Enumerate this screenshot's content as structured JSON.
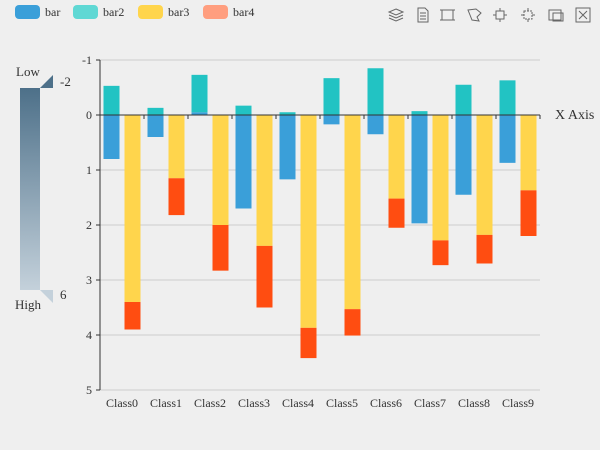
{
  "legend": [
    {
      "name": "bar",
      "color": "#3a9fd9"
    },
    {
      "name": "bar2",
      "color": "#5fd8d4"
    },
    {
      "name": "bar3",
      "color": "#ffd54c"
    },
    {
      "name": "bar4",
      "color": "#ff9e7f"
    }
  ],
  "toolbox": [
    {
      "name": "stack-icon"
    },
    {
      "name": "data-view-icon"
    },
    {
      "name": "rect-select-icon"
    },
    {
      "name": "lasso-select-icon"
    },
    {
      "name": "keep-selection-icon"
    },
    {
      "name": "clear-selection-icon"
    },
    {
      "name": "save-image-icon"
    },
    {
      "name": "restore-icon"
    }
  ],
  "visual_map": {
    "low_label": "Low",
    "high_label": "High",
    "min_label": "-2",
    "max_label": "6",
    "color_top": "#4d7089",
    "color_bottom": "#c4d1db"
  },
  "chart_data": {
    "type": "bar",
    "stacked": true,
    "y_inverted": true,
    "x_axis_at_zero": true,
    "xlabel": "X Axis",
    "ylabel": "",
    "ylim": [
      -1,
      5
    ],
    "y_ticks": [
      "-1",
      "0",
      "1",
      "2",
      "3",
      "4",
      "5"
    ],
    "categories": [
      "Class0",
      "Class1",
      "Class2",
      "Class3",
      "Class4",
      "Class5",
      "Class6",
      "Class7",
      "Class8",
      "Class9"
    ],
    "stacks": [
      {
        "stack_id": "one",
        "series": [
          {
            "name": "bar",
            "color": "#3a9fd9",
            "values": [
              0.8,
              0.4,
              -0.05,
              1.7,
              1.17,
              0.17,
              0.35,
              1.97,
              1.45,
              0.87
            ]
          },
          {
            "name": "bar2",
            "color": "#22c3c3",
            "values": [
              -0.53,
              -0.13,
              -0.68,
              -0.17,
              -0.05,
              -0.67,
              -0.85,
              -0.07,
              -0.55,
              -0.63
            ]
          }
        ]
      },
      {
        "stack_id": "two",
        "series": [
          {
            "name": "bar3",
            "color": "#ffd54c",
            "values": [
              3.4,
              1.15,
              2.0,
              2.38,
              3.87,
              3.53,
              1.52,
              2.28,
              2.18,
              1.37
            ]
          },
          {
            "name": "bar4",
            "color": "#ff4d11",
            "values": [
              0.5,
              0.67,
              0.83,
              1.12,
              0.55,
              0.48,
              0.53,
              0.45,
              0.52,
              0.83
            ]
          }
        ]
      }
    ],
    "grid": true,
    "legend_position": "top-left"
  }
}
